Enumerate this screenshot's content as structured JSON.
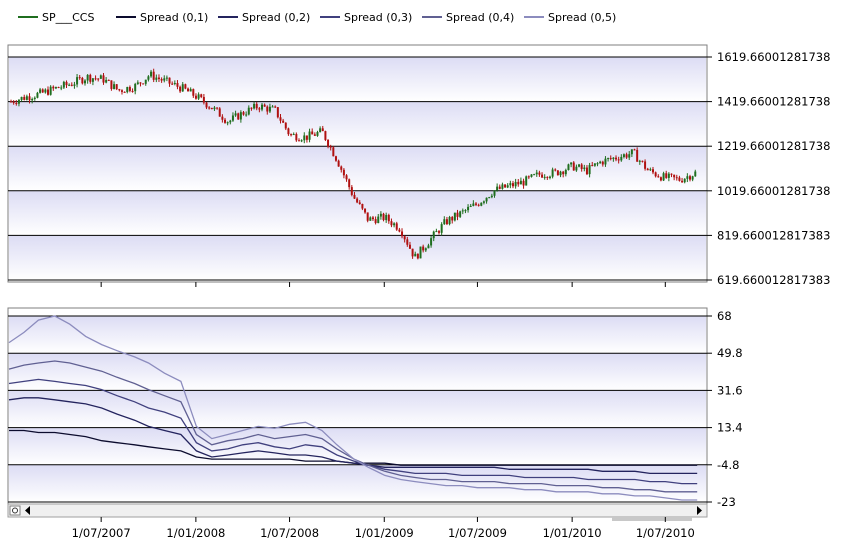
{
  "chart_data": [
    {
      "type": "candlestick",
      "series": [
        {
          "name": "SP___CCS",
          "color": "#1f6e1f"
        }
      ],
      "y_tick_labels": [
        "1619.66001281738",
        "1419.66001281738",
        "1219.66001281738",
        "1019.66001281738",
        "819.660012817383",
        "619.660012817383"
      ],
      "ylim": [
        619.66,
        1619.66
      ],
      "grid": true,
      "x_dates": [
        "2007-01-03",
        "2007-02-01",
        "2007-03-01",
        "2007-04-02",
        "2007-05-01",
        "2007-06-01",
        "2007-07-02",
        "2007-08-01",
        "2007-09-04",
        "2007-10-01",
        "2007-11-01",
        "2007-12-03",
        "2008-01-02",
        "2008-02-01",
        "2008-03-03",
        "2008-04-01",
        "2008-05-01",
        "2008-06-02",
        "2008-07-01",
        "2008-08-01",
        "2008-09-02",
        "2008-10-01",
        "2008-11-03",
        "2008-12-01",
        "2009-01-02",
        "2009-02-02",
        "2009-03-02",
        "2009-04-01",
        "2009-05-01",
        "2009-06-01",
        "2009-07-01",
        "2009-08-03",
        "2009-09-01",
        "2009-10-01",
        "2009-11-02",
        "2009-12-01",
        "2010-01-04",
        "2010-02-01",
        "2010-03-01",
        "2010-04-01",
        "2010-05-03",
        "2010-06-01",
        "2010-07-01",
        "2010-08-02",
        "2010-09-01"
      ],
      "close": [
        1420,
        1440,
        1455,
        1480,
        1500,
        1530,
        1520,
        1470,
        1490,
        1540,
        1510,
        1480,
        1440,
        1390,
        1330,
        1370,
        1400,
        1380,
        1270,
        1260,
        1285,
        1160,
        990,
        890,
        900,
        850,
        720,
        800,
        880,
        920,
        960,
        1020,
        1040,
        1060,
        1095,
        1100,
        1130,
        1110,
        1150,
        1170,
        1190,
        1110,
        1080,
        1070,
        1100
      ]
    },
    {
      "type": "line",
      "series": [
        {
          "name": "Spread (0,1)",
          "color": "#0c0c2e",
          "values": [
            12,
            12,
            11,
            11,
            10,
            9,
            7,
            6,
            5,
            4,
            3,
            2,
            -1,
            -2,
            -2,
            -2,
            -2,
            -2,
            -2,
            -3,
            -3,
            -3,
            -4,
            -4,
            -4,
            -5,
            -5,
            -5,
            -5,
            -5,
            -5,
            -5,
            -5,
            -5,
            -5,
            -5,
            -5,
            -5,
            -5,
            -5,
            -5,
            -5,
            -5,
            -5,
            -5
          ]
        },
        {
          "name": "Spread (0,2)",
          "color": "#24245e",
          "values": [
            27,
            28,
            28,
            27,
            26,
            25,
            23,
            20,
            17,
            14,
            12,
            10,
            2,
            -1,
            0,
            1,
            2,
            1,
            0,
            0,
            -1,
            -3,
            -4,
            -5,
            -6,
            -6,
            -6,
            -6,
            -6,
            -6,
            -6,
            -6,
            -7,
            -7,
            -7,
            -7,
            -7,
            -7,
            -8,
            -8,
            -8,
            -9,
            -9,
            -9,
            -9
          ]
        },
        {
          "name": "Spread (0,3)",
          "color": "#40407e",
          "values": [
            35,
            36,
            37,
            36,
            35,
            34,
            32,
            29,
            26,
            23,
            21,
            18,
            6,
            2,
            3,
            5,
            6,
            4,
            3,
            5,
            4,
            0,
            -3,
            -5,
            -7,
            -8,
            -9,
            -9,
            -9,
            -10,
            -10,
            -10,
            -10,
            -11,
            -11,
            -11,
            -11,
            -12,
            -12,
            -12,
            -12,
            -13,
            -13,
            -14,
            -14
          ]
        },
        {
          "name": "Spread (0,4)",
          "color": "#606092",
          "values": [
            42,
            44,
            45,
            46,
            45,
            43,
            41,
            38,
            35,
            32,
            29,
            26,
            10,
            5,
            7,
            8,
            10,
            8,
            9,
            10,
            8,
            3,
            -2,
            -5,
            -8,
            -10,
            -11,
            -12,
            -12,
            -13,
            -13,
            -13,
            -14,
            -14,
            -14,
            -15,
            -15,
            -15,
            -16,
            -16,
            -17,
            -17,
            -18,
            -18,
            -18
          ]
        },
        {
          "name": "Spread (0,5)",
          "color": "#8c8cbe",
          "values": [
            55,
            60,
            66,
            68,
            64,
            58,
            54,
            51,
            48,
            45,
            40,
            36,
            14,
            8,
            10,
            12,
            14,
            13,
            15,
            16,
            12,
            5,
            -2,
            -6,
            -10,
            -12,
            -13,
            -14,
            -15,
            -15,
            -16,
            -16,
            -16,
            -17,
            -17,
            -18,
            -18,
            -18,
            -19,
            -19,
            -20,
            -20,
            -21,
            -22,
            -22
          ]
        }
      ],
      "y_tick_labels": [
        "68",
        "49.8",
        "31.6",
        "13.4",
        "-4.8",
        "-23"
      ],
      "ylim": [
        -23,
        68
      ],
      "grid": true
    }
  ],
  "x_tick_labels": [
    "1/07/2007",
    "1/01/2008",
    "1/07/2008",
    "1/01/2009",
    "1/07/2009",
    "1/01/2010",
    "1/07/2010"
  ],
  "colors": {
    "band": "#e6e6f8",
    "candle_up": "#1f6e1f",
    "candle_down": "#b01010"
  }
}
